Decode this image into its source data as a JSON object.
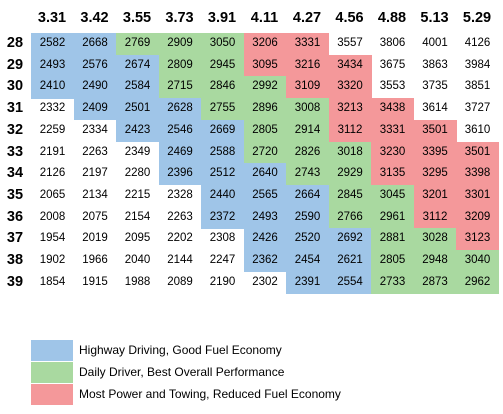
{
  "columns": [
    "3.31",
    "3.42",
    "3.55",
    "3.73",
    "3.91",
    "4.11",
    "4.27",
    "4.56",
    "4.88",
    "5.13",
    "5.29"
  ],
  "rows": [
    {
      "label": "28",
      "values": [
        "2582",
        "2668",
        "2769",
        "2909",
        "3050",
        "3206",
        "3331",
        "3557",
        "3806",
        "4001",
        "4126"
      ],
      "colors": [
        "blue",
        "blue",
        "green",
        "green",
        "green",
        "red",
        "red",
        "none",
        "none",
        "none",
        "none"
      ]
    },
    {
      "label": "29",
      "values": [
        "2493",
        "2576",
        "2674",
        "2809",
        "2945",
        "3095",
        "3216",
        "3434",
        "3675",
        "3863",
        "3984"
      ],
      "colors": [
        "blue",
        "blue",
        "blue",
        "green",
        "green",
        "red",
        "red",
        "red",
        "none",
        "none",
        "none"
      ]
    },
    {
      "label": "30",
      "values": [
        "2410",
        "2490",
        "2584",
        "2715",
        "2846",
        "2992",
        "3109",
        "3320",
        "3553",
        "3735",
        "3851"
      ],
      "colors": [
        "blue",
        "blue",
        "blue",
        "green",
        "green",
        "green",
        "red",
        "red",
        "none",
        "none",
        "none"
      ]
    },
    {
      "label": "31",
      "values": [
        "2332",
        "2409",
        "2501",
        "2628",
        "2755",
        "2896",
        "3008",
        "3213",
        "3438",
        "3614",
        "3727"
      ],
      "colors": [
        "none",
        "blue",
        "blue",
        "blue",
        "green",
        "green",
        "green",
        "red",
        "red",
        "none",
        "none"
      ]
    },
    {
      "label": "32",
      "values": [
        "2259",
        "2334",
        "2423",
        "2546",
        "2669",
        "2805",
        "2914",
        "3112",
        "3331",
        "3501",
        "3610"
      ],
      "colors": [
        "none",
        "none",
        "blue",
        "blue",
        "blue",
        "green",
        "green",
        "red",
        "red",
        "red",
        "none"
      ]
    },
    {
      "label": "33",
      "values": [
        "2191",
        "2263",
        "2349",
        "2469",
        "2588",
        "2720",
        "2826",
        "3018",
        "3230",
        "3395",
        "3501"
      ],
      "colors": [
        "none",
        "none",
        "none",
        "blue",
        "blue",
        "green",
        "green",
        "green",
        "red",
        "red",
        "red"
      ]
    },
    {
      "label": "34",
      "values": [
        "2126",
        "2197",
        "2280",
        "2396",
        "2512",
        "2640",
        "2743",
        "2929",
        "3135",
        "3295",
        "3398"
      ],
      "colors": [
        "none",
        "none",
        "none",
        "blue",
        "blue",
        "blue",
        "green",
        "green",
        "red",
        "red",
        "red"
      ]
    },
    {
      "label": "35",
      "values": [
        "2065",
        "2134",
        "2215",
        "2328",
        "2440",
        "2565",
        "2664",
        "2845",
        "3045",
        "3201",
        "3301"
      ],
      "colors": [
        "none",
        "none",
        "none",
        "none",
        "blue",
        "blue",
        "blue",
        "green",
        "green",
        "red",
        "red"
      ]
    },
    {
      "label": "36",
      "values": [
        "2008",
        "2075",
        "2154",
        "2263",
        "2372",
        "2493",
        "2590",
        "2766",
        "2961",
        "3112",
        "3209"
      ],
      "colors": [
        "none",
        "none",
        "none",
        "none",
        "blue",
        "blue",
        "blue",
        "green",
        "green",
        "red",
        "red"
      ]
    },
    {
      "label": "37",
      "values": [
        "1954",
        "2019",
        "2095",
        "2202",
        "2308",
        "2426",
        "2520",
        "2692",
        "2881",
        "3028",
        "3123"
      ],
      "colors": [
        "none",
        "none",
        "none",
        "none",
        "none",
        "blue",
        "blue",
        "blue",
        "green",
        "green",
        "red"
      ]
    },
    {
      "label": "38",
      "values": [
        "1902",
        "1966",
        "2040",
        "2144",
        "2247",
        "2362",
        "2454",
        "2621",
        "2805",
        "2948",
        "3040"
      ],
      "colors": [
        "none",
        "none",
        "none",
        "none",
        "none",
        "blue",
        "blue",
        "blue",
        "green",
        "green",
        "green"
      ]
    },
    {
      "label": "39",
      "values": [
        "1854",
        "1915",
        "1988",
        "2089",
        "2190",
        "2302",
        "2391",
        "2554",
        "2733",
        "2873",
        "2962"
      ],
      "colors": [
        "none",
        "none",
        "none",
        "none",
        "none",
        "none",
        "blue",
        "blue",
        "green",
        "green",
        "green"
      ]
    }
  ],
  "colors": {
    "blue": "#9fc5e8",
    "green": "#a9d9a0",
    "red": "#f4989a"
  },
  "legend": [
    {
      "color": "blue",
      "label": "Highway Driving, Good Fuel Economy"
    },
    {
      "color": "green",
      "label": "Daily Driver, Best Overall Performance"
    },
    {
      "color": "red",
      "label": "Most Power and Towing, Reduced Fuel Economy"
    }
  ]
}
